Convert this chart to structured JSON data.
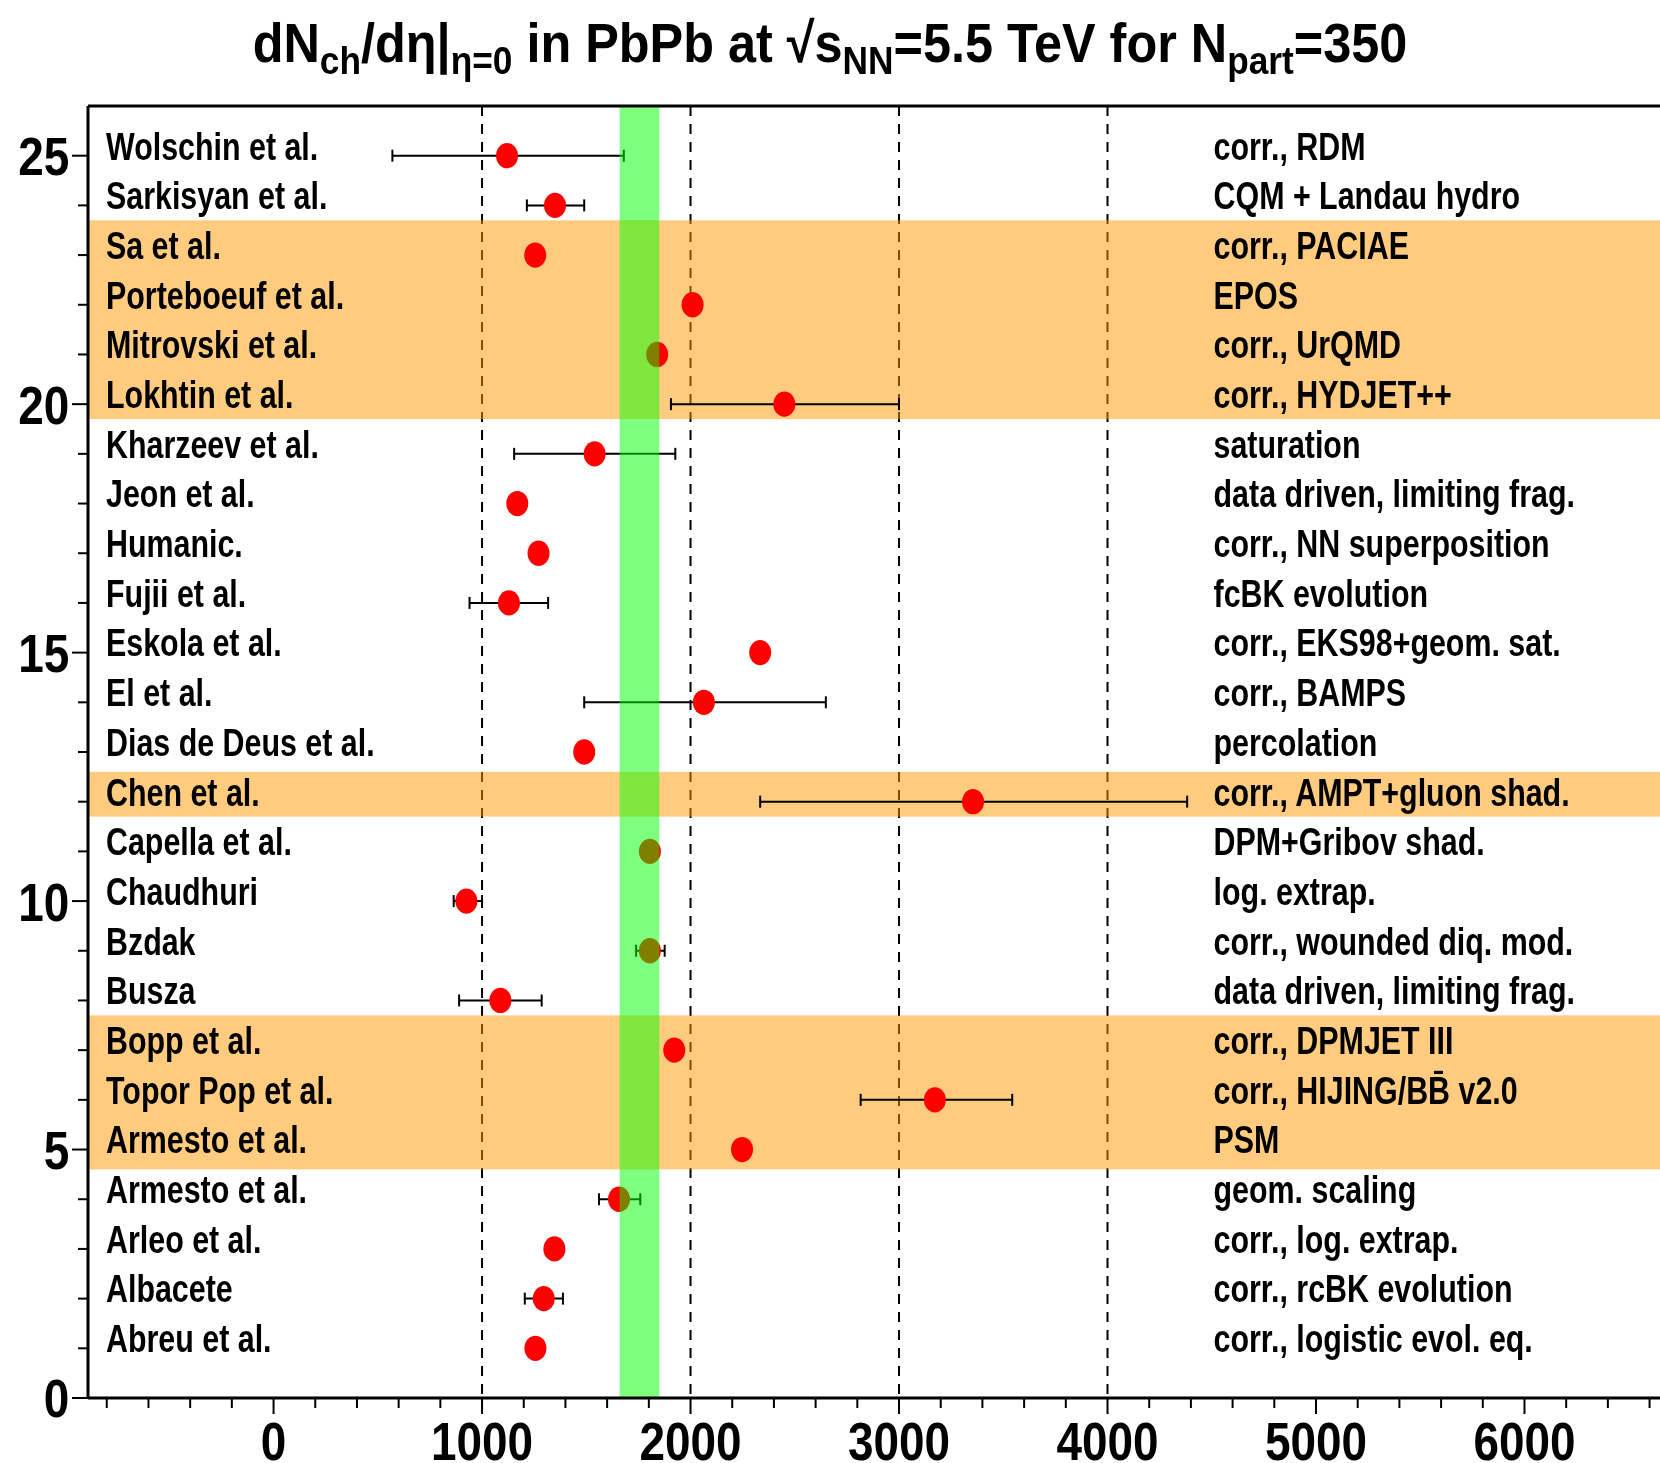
{
  "chart_data": {
    "type": "scatter",
    "title": "dN$_{ch}$/dη|$_{η=0}$ in PbPb at √s$_{NN}$=5.5 TeV for N$_{part}$=350",
    "xlim": [
      -890,
      6650
    ],
    "ylim": [
      0,
      26
    ],
    "xticks": [
      {
        "value": -800,
        "label": null
      },
      {
        "value": -600,
        "label": null
      },
      {
        "value": -400,
        "label": null
      },
      {
        "value": -200,
        "label": null
      },
      0,
      {
        "value": 200,
        "label": null
      },
      {
        "value": 400,
        "label": null
      },
      {
        "value": 600,
        "label": null
      },
      {
        "value": 800,
        "label": null
      },
      1000,
      {
        "value": 1200,
        "label": null
      },
      {
        "value": 1400,
        "label": null
      },
      {
        "value": 1600,
        "label": null
      },
      {
        "value": 1800,
        "label": null
      },
      2000,
      {
        "value": 2200,
        "label": null
      },
      {
        "value": 2400,
        "label": null
      },
      {
        "value": 2600,
        "label": null
      },
      {
        "value": 2800,
        "label": null
      },
      3000,
      {
        "value": 3200,
        "label": null
      },
      {
        "value": 3400,
        "label": null
      },
      {
        "value": 3600,
        "label": null
      },
      {
        "value": 3800,
        "label": null
      },
      4000,
      {
        "value": 4200,
        "label": null
      },
      {
        "value": 4400,
        "label": null
      },
      {
        "value": 4600,
        "label": null
      },
      {
        "value": 4800,
        "label": null
      },
      5000,
      {
        "value": 5200,
        "label": null
      },
      {
        "value": 5400,
        "label": null
      },
      {
        "value": 5600,
        "label": null
      },
      {
        "value": 5800,
        "label": null
      },
      6000,
      {
        "value": 6200,
        "label": null
      },
      {
        "value": 6400,
        "label": null
      },
      {
        "value": 6600,
        "label": null
      }
    ],
    "yticks": [
      0,
      {
        "value": 1,
        "label": null
      },
      {
        "value": 2,
        "label": null
      },
      {
        "value": 3,
        "label": null
      },
      {
        "value": 4,
        "label": null
      },
      5,
      {
        "value": 6,
        "label": null
      },
      {
        "value": 7,
        "label": null
      },
      {
        "value": 8,
        "label": null
      },
      {
        "value": 9,
        "label": null
      },
      10,
      {
        "value": 11,
        "label": null
      },
      {
        "value": 12,
        "label": null
      },
      {
        "value": 13,
        "label": null
      },
      {
        "value": 14,
        "label": null
      },
      15,
      {
        "value": 16,
        "label": null
      },
      {
        "value": 17,
        "label": null
      },
      {
        "value": 18,
        "label": null
      },
      {
        "value": 19,
        "label": null
      },
      20,
      {
        "value": 21,
        "label": null
      },
      {
        "value": 22,
        "label": null
      },
      {
        "value": 23,
        "label": null
      },
      {
        "value": 24,
        "label": null
      },
      25
    ],
    "marker": "circle",
    "grid": false,
    "series": [
      {
        "color": "#ff0000",
        "x": [
          1256,
          1296,
          1347,
          1657,
          2247,
          3172,
          1922,
          1088,
          1805,
          925,
          1805,
          3355,
          1490,
          2064,
          2334,
          1129,
          1271,
          1169,
          1540,
          2450,
          1840,
          2010,
          1255,
          1350,
          1120
        ],
        "values": [
          1,
          2,
          3,
          4,
          5,
          6,
          7,
          8,
          9,
          10,
          11,
          12,
          13,
          14,
          15,
          16,
          17,
          18,
          19,
          20,
          21,
          22,
          23,
          24,
          25
        ],
        "xerrors": [
          null,
          [
            1205,
            1388
          ],
          null,
          [
            1561,
            1759
          ],
          null,
          [
            2816,
            3543
          ],
          null,
          [
            890,
            1286
          ],
          [
            1739,
            1876
          ],
          [
            864,
            1000
          ],
          null,
          [
            2334,
            4382
          ],
          null,
          [
            1490,
            2649
          ],
          null,
          [
            940,
            1317
          ],
          null,
          null,
          [
            1154,
            1927
          ],
          [
            1906,
            3000
          ],
          null,
          null,
          null,
          [
            1215,
            1490
          ],
          [
            570,
            1680
          ]
        ]
      }
    ],
    "ref_lines": [
      {
        "axis": "x",
        "value": 1000,
        "color": "#000000",
        "line_style": "dashed"
      },
      {
        "axis": "x",
        "value": 2000,
        "color": "#000000",
        "line_style": "dashed"
      },
      {
        "axis": "x",
        "value": 3000,
        "color": "#000000",
        "line_style": "dashed"
      },
      {
        "axis": "x",
        "value": 4000,
        "color": "#000000",
        "line_style": "dashed"
      }
    ],
    "bands": [
      {
        "axis": "x",
        "from": 1660,
        "to": 1850,
        "color": "#00ff00"
      },
      {
        "axis": "y",
        "from": 19.7,
        "to": 23.7,
        "color": "#ff9900"
      },
      {
        "axis": "y",
        "from": 11.7,
        "to": 12.6,
        "color": "#ff9900"
      },
      {
        "axis": "y",
        "from": 4.6,
        "to": 7.7,
        "color": "#ff9900"
      }
    ],
    "annotations": [
      "Abreu et al.",
      "Albacete",
      "Arleo et al.",
      "Armesto et al.",
      "Armesto et al.",
      "Topor Pop et al.",
      "Bopp et al.",
      "Busza",
      "Bzdak",
      "Chaudhuri",
      "Capella et al.",
      "Chen et al.",
      "Dias de Deus et al.",
      "El et al.",
      "Eskola et al.",
      "Fujii et al.",
      "Humanic.",
      "Jeon et al.",
      "Kharzeev et al.",
      "Lokhtin et al.",
      "Mitrovski et al.",
      "Porteboeuf et al.",
      "Sa et al.",
      "Sarkisyan et al.",
      "Wolschin et al.",
      "corr., logistic evol. eq.",
      "corr., rcBK evolution",
      "corr., log. extrap.",
      "geom. scaling",
      "PSM",
      "corr., HIJING/BB̄ v2.0",
      "corr., DPMJET III",
      "data driven, limiting frag.",
      "corr., wounded diq. mod.",
      "log. extrap.",
      "DPM+Gribov shad.",
      "corr., AMPT+gluon shad.",
      "percolation",
      "corr., BAMPS",
      "corr., EKS98+geom. sat.",
      "fcBK evolution",
      "corr., NN superposition",
      "data driven, limiting frag.",
      "saturation",
      "corr., HYDJET++",
      "corr., UrQMD",
      "EPOS",
      "corr., PACIAE",
      "CQM + Landau hydro",
      "corr., RDM"
    ]
  }
}
